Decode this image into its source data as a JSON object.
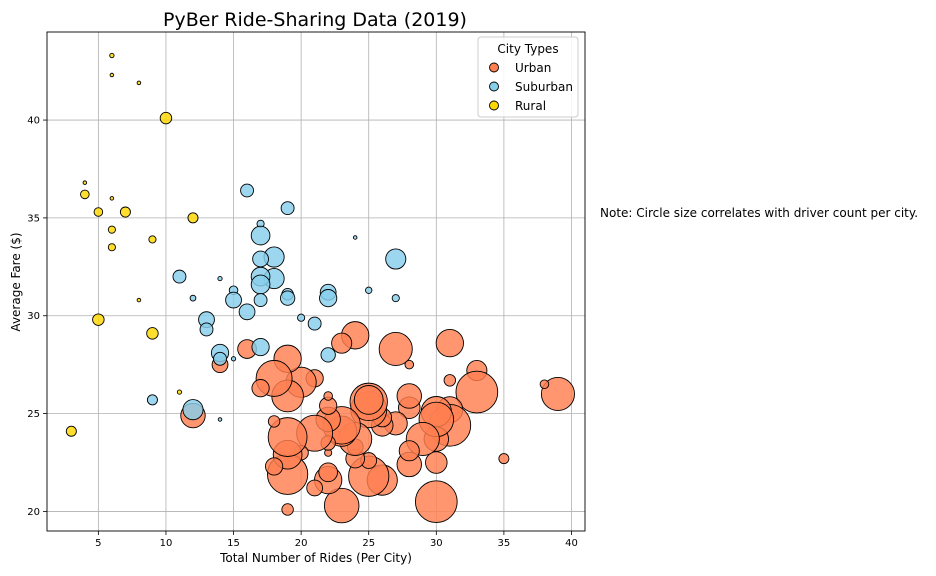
{
  "chart_data": {
    "type": "scatter",
    "title": "PyBer Ride-Sharing Data (2019)",
    "xlabel": "Total Number of Rides (Per City)",
    "ylabel": "Average Fare ($)",
    "xlim": [
      1.2,
      41
    ],
    "ylim": [
      19,
      44.5
    ],
    "xticks": [
      5,
      10,
      15,
      20,
      25,
      30,
      35,
      40
    ],
    "yticks": [
      20,
      25,
      30,
      35,
      40
    ],
    "grid": true,
    "legend": {
      "title": "City Types",
      "placement": "top-right"
    },
    "note": "Note: Circle size correlates with driver count per city.",
    "size_encoding": "driver count",
    "series": [
      {
        "name": "Urban",
        "color": "#FF7F50",
        "points": [
          [
            39,
            26.0,
            46
          ],
          [
            38,
            26.5,
            12
          ],
          [
            35,
            22.7,
            14
          ],
          [
            33,
            27.2,
            28
          ],
          [
            33,
            26.1,
            58
          ],
          [
            31,
            28.6,
            38
          ],
          [
            31,
            26.7,
            16
          ],
          [
            31,
            25.2,
            36
          ],
          [
            31,
            24.4,
            58
          ],
          [
            30,
            20.5,
            58
          ],
          [
            30,
            22.5,
            30
          ],
          [
            30,
            23.7,
            34
          ],
          [
            30,
            25.1,
            42
          ],
          [
            30,
            24.7,
            48
          ],
          [
            29,
            23.7,
            46
          ],
          [
            28,
            22.4,
            34
          ],
          [
            28,
            23.1,
            28
          ],
          [
            28,
            25.3,
            30
          ],
          [
            28,
            25.9,
            34
          ],
          [
            28,
            27.5,
            12
          ],
          [
            27,
            24.5,
            32
          ],
          [
            27,
            28.3,
            46
          ],
          [
            26,
            21.6,
            42
          ],
          [
            26,
            24.4,
            30
          ],
          [
            26,
            24.8,
            26
          ],
          [
            25,
            21.8,
            56
          ],
          [
            25,
            22.6,
            22
          ],
          [
            25,
            25.2,
            50
          ],
          [
            25,
            25.6,
            52
          ],
          [
            25,
            25.7,
            40
          ],
          [
            24,
            22.7,
            26
          ],
          [
            24,
            23.3,
            22
          ],
          [
            24,
            23.7,
            46
          ],
          [
            24,
            29.0,
            38
          ],
          [
            23,
            24.1,
            42
          ],
          [
            23,
            24.4,
            52
          ],
          [
            23,
            28.6,
            28
          ],
          [
            23,
            20.3,
            48
          ],
          [
            22,
            21.6,
            38
          ],
          [
            22,
            22.0,
            26
          ],
          [
            22,
            23.0,
            10
          ],
          [
            22,
            23.5,
            20
          ],
          [
            22,
            24.7,
            34
          ],
          [
            22,
            25.4,
            24
          ],
          [
            22,
            25.9,
            12
          ],
          [
            21,
            21.2,
            22
          ],
          [
            21,
            24.0,
            50
          ],
          [
            21,
            26.8,
            24
          ],
          [
            20,
            23.0,
            20
          ],
          [
            20,
            26.6,
            42
          ],
          [
            19,
            20.1,
            16
          ],
          [
            19,
            21.9,
            56
          ],
          [
            19,
            22.9,
            40
          ],
          [
            19,
            23.8,
            54
          ],
          [
            19,
            25.9,
            44
          ],
          [
            19,
            27.8,
            38
          ],
          [
            18,
            22.3,
            24
          ],
          [
            18,
            24.6,
            16
          ],
          [
            18,
            26.8,
            50
          ],
          [
            17,
            26.3,
            24
          ],
          [
            16,
            28.3,
            26
          ],
          [
            14,
            27.5,
            22
          ],
          [
            12,
            24.9,
            34
          ]
        ]
      },
      {
        "name": "Suburban",
        "color": "#87CEEB",
        "points": [
          [
            27,
            32.9,
            28
          ],
          [
            27,
            30.9,
            10
          ],
          [
            25,
            31.3,
            9
          ],
          [
            24,
            34.0,
            4
          ],
          [
            22,
            31.2,
            22
          ],
          [
            22,
            30.9,
            24
          ],
          [
            22,
            28.0,
            20
          ],
          [
            21,
            29.6,
            18
          ],
          [
            20,
            29.9,
            10
          ],
          [
            19,
            35.5,
            18
          ],
          [
            19,
            31.1,
            16
          ],
          [
            19,
            30.9,
            20
          ],
          [
            18,
            33.0,
            28
          ],
          [
            18,
            31.9,
            28
          ],
          [
            17,
            34.7,
            10
          ],
          [
            17,
            34.1,
            26
          ],
          [
            17,
            32.9,
            22
          ],
          [
            17,
            32.0,
            26
          ],
          [
            17,
            31.6,
            26
          ],
          [
            17,
            30.8,
            18
          ],
          [
            17,
            28.4,
            24
          ],
          [
            16,
            36.4,
            18
          ],
          [
            16,
            30.2,
            22
          ],
          [
            15,
            31.3,
            12
          ],
          [
            15,
            30.8,
            22
          ],
          [
            15,
            27.8,
            6
          ],
          [
            14,
            31.9,
            6
          ],
          [
            14,
            28.1,
            24
          ],
          [
            14,
            27.8,
            18
          ],
          [
            14,
            24.7,
            4
          ],
          [
            13,
            29.8,
            22
          ],
          [
            13,
            29.3,
            18
          ],
          [
            12,
            30.9,
            8
          ],
          [
            12,
            25.2,
            28
          ],
          [
            11,
            32.0,
            18
          ],
          [
            9,
            25.7,
            14
          ]
        ]
      },
      {
        "name": "Rural",
        "color": "#FFD700",
        "points": [
          [
            3,
            24.1,
            14
          ],
          [
            4,
            36.8,
            4
          ],
          [
            4,
            36.2,
            12
          ],
          [
            5,
            35.3,
            12
          ],
          [
            5,
            29.8,
            16
          ],
          [
            6,
            43.3,
            6
          ],
          [
            6,
            42.3,
            4
          ],
          [
            6,
            36.0,
            4
          ],
          [
            6,
            34.4,
            10
          ],
          [
            6,
            33.5,
            10
          ],
          [
            7,
            35.3,
            14
          ],
          [
            8,
            41.9,
            4
          ],
          [
            8,
            30.8,
            4
          ],
          [
            9,
            33.9,
            10
          ],
          [
            9,
            29.1,
            16
          ],
          [
            10,
            40.1,
            16
          ],
          [
            11,
            26.1,
            6
          ],
          [
            12,
            35.0,
            14
          ]
        ]
      }
    ]
  }
}
